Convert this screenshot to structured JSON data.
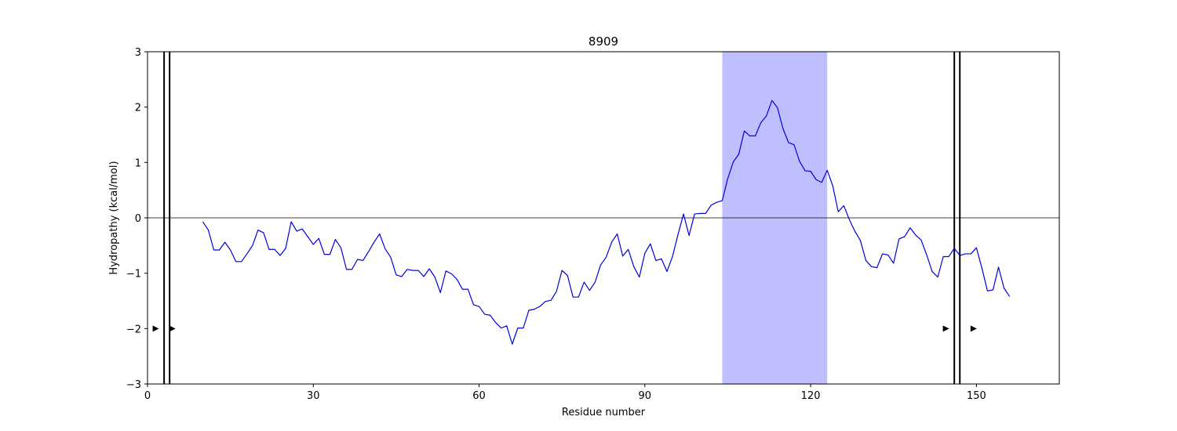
{
  "chart_data": {
    "type": "line",
    "title": "8909",
    "xlabel": "Residue number",
    "ylabel": "Hydropathy (kcal/mol)",
    "xlim": [
      0,
      165
    ],
    "ylim": [
      -3,
      3
    ],
    "x_ticks": [
      0,
      30,
      60,
      90,
      120,
      150
    ],
    "y_ticks": [
      -3,
      -2,
      -1,
      0,
      1,
      2,
      3
    ],
    "x_tick_labels": [
      "0",
      "30",
      "60",
      "90",
      "120",
      "150"
    ],
    "y_tick_labels": [
      "−3",
      "−2",
      "−1",
      "0",
      "1",
      "2",
      "3"
    ],
    "zero_line": 0,
    "highlight_region": {
      "start": 104,
      "end": 123,
      "color": "#bfbfff"
    },
    "boundary_pairs": [
      {
        "lines": [
          3,
          4
        ],
        "arrows": [
          1.5,
          4.5
        ],
        "arrow_y": -2
      },
      {
        "lines": [
          146,
          147
        ],
        "arrows": [
          144.5,
          149.5
        ],
        "arrow_y": -2
      }
    ],
    "series": [
      {
        "color": "#0000dd",
        "x": [
          10,
          11,
          12,
          13,
          14,
          15,
          16,
          17,
          18,
          19,
          20,
          21,
          22,
          23,
          24,
          25,
          26,
          27,
          28,
          29,
          30,
          31,
          32,
          33,
          34,
          35,
          36,
          37,
          38,
          39,
          40,
          41,
          42,
          43,
          44,
          45,
          46,
          47,
          48,
          49,
          50,
          51,
          52,
          53,
          54,
          55,
          56,
          57,
          58,
          59,
          60,
          61,
          62,
          63,
          64,
          65,
          66,
          67,
          68,
          69,
          70,
          71,
          72,
          73,
          74,
          75,
          76,
          77,
          78,
          79,
          80,
          81,
          82,
          83,
          84,
          85,
          86,
          87,
          88,
          89,
          90,
          91,
          92,
          93,
          94,
          95,
          96,
          97,
          98,
          99,
          100,
          101,
          102,
          103,
          104,
          105,
          106,
          107,
          108,
          109,
          110,
          111,
          112,
          113,
          114,
          115,
          116,
          117,
          118,
          119,
          120,
          121,
          122,
          123,
          124,
          125,
          126,
          127,
          128,
          129,
          130,
          131,
          132,
          133,
          134,
          135,
          136,
          137,
          138,
          139,
          140,
          141,
          142,
          143,
          144,
          145,
          146,
          147,
          148,
          149,
          150,
          151,
          152,
          153,
          154,
          155,
          156
        ],
        "values": [
          -0.07,
          -0.22,
          -0.58,
          -0.58,
          -0.44,
          -0.58,
          -0.79,
          -0.79,
          -0.65,
          -0.5,
          -0.22,
          -0.27,
          -0.57,
          -0.57,
          -0.68,
          -0.55,
          -0.07,
          -0.24,
          -0.2,
          -0.34,
          -0.48,
          -0.37,
          -0.66,
          -0.66,
          -0.39,
          -0.54,
          -0.93,
          -0.93,
          -0.75,
          -0.77,
          -0.61,
          -0.44,
          -0.29,
          -0.56,
          -0.71,
          -1.03,
          -1.06,
          -0.93,
          -0.95,
          -0.95,
          -1.06,
          -0.92,
          -1.07,
          -1.35,
          -0.96,
          -1.01,
          -1.11,
          -1.29,
          -1.29,
          -1.57,
          -1.6,
          -1.74,
          -1.76,
          -1.89,
          -1.99,
          -1.95,
          -2.28,
          -1.99,
          -1.99,
          -1.67,
          -1.65,
          -1.6,
          -1.51,
          -1.49,
          -1.33,
          -0.95,
          -1.04,
          -1.43,
          -1.43,
          -1.16,
          -1.31,
          -1.16,
          -0.85,
          -0.71,
          -0.44,
          -0.29,
          -0.69,
          -0.57,
          -0.88,
          -1.07,
          -0.64,
          -0.47,
          -0.77,
          -0.74,
          -0.97,
          -0.7,
          -0.3,
          0.07,
          -0.32,
          0.07,
          0.08,
          0.08,
          0.23,
          0.28,
          0.31,
          0.71,
          1.01,
          1.15,
          1.57,
          1.48,
          1.48,
          1.72,
          1.84,
          2.12,
          1.99,
          1.61,
          1.36,
          1.32,
          1.02,
          0.85,
          0.84,
          0.69,
          0.64,
          0.86,
          0.58,
          0.11,
          0.22,
          -0.03,
          -0.24,
          -0.41,
          -0.77,
          -0.88,
          -0.9,
          -0.65,
          -0.67,
          -0.82,
          -0.38,
          -0.34,
          -0.18,
          -0.31,
          -0.4,
          -0.67,
          -0.97,
          -1.07,
          -0.7,
          -0.7,
          -0.55,
          -0.68,
          -0.65,
          -0.65,
          -0.54,
          -0.91,
          -1.32,
          -1.3,
          -0.89,
          -1.27,
          -1.42
        ]
      }
    ],
    "grid": false,
    "legend": "none"
  }
}
